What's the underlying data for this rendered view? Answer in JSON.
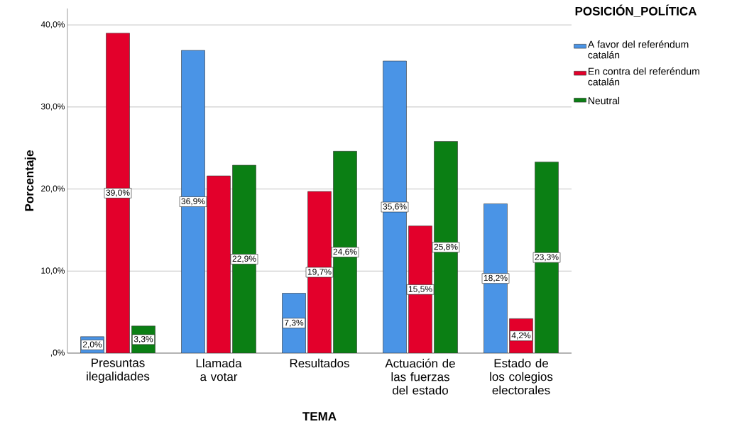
{
  "chart_data": {
    "type": "bar",
    "xlabel": "TEMA",
    "ylabel": "Porcentaje",
    "legend_title": "POSICIÓN_POLÍTICA",
    "categories": [
      "Presuntas ilegalidades",
      "Llamada a votar",
      "Resultados",
      "Actuación de las fuerzas del estado",
      "Estado de los colegios electorales"
    ],
    "series": [
      {
        "name": "A favor del referéndum catalán",
        "color": "#4a94e6",
        "values": [
          2.0,
          36.9,
          7.3,
          35.6,
          18.2
        ],
        "value_labels": [
          "2,0%",
          "36,9%",
          "7,3%",
          "35,6%",
          "18,2%"
        ]
      },
      {
        "name": "En contra del referéndum catalán",
        "color": "#e3002b",
        "values": [
          39.0,
          21.6,
          19.7,
          15.5,
          4.2
        ],
        "value_labels": [
          "39,0%",
          null,
          "19,7%",
          "15,5%",
          "4,2%"
        ]
      },
      {
        "name": "Neutral",
        "color": "#0b7f14",
        "values": [
          3.3,
          22.9,
          24.6,
          25.8,
          23.3
        ],
        "value_labels": [
          "3,3%",
          "22,9%",
          "24,6%",
          "25,8%",
          "23,3%"
        ]
      }
    ],
    "ylim": [
      0,
      42
    ],
    "yticks": [
      {
        "value": 0,
        "label": ",0%"
      },
      {
        "value": 10,
        "label": "10,0%"
      },
      {
        "value": 20,
        "label": "20,0%"
      },
      {
        "value": 30,
        "label": "30,0%"
      },
      {
        "value": 40,
        "label": "40,0%"
      }
    ],
    "grid": "y",
    "legend": "top right"
  }
}
